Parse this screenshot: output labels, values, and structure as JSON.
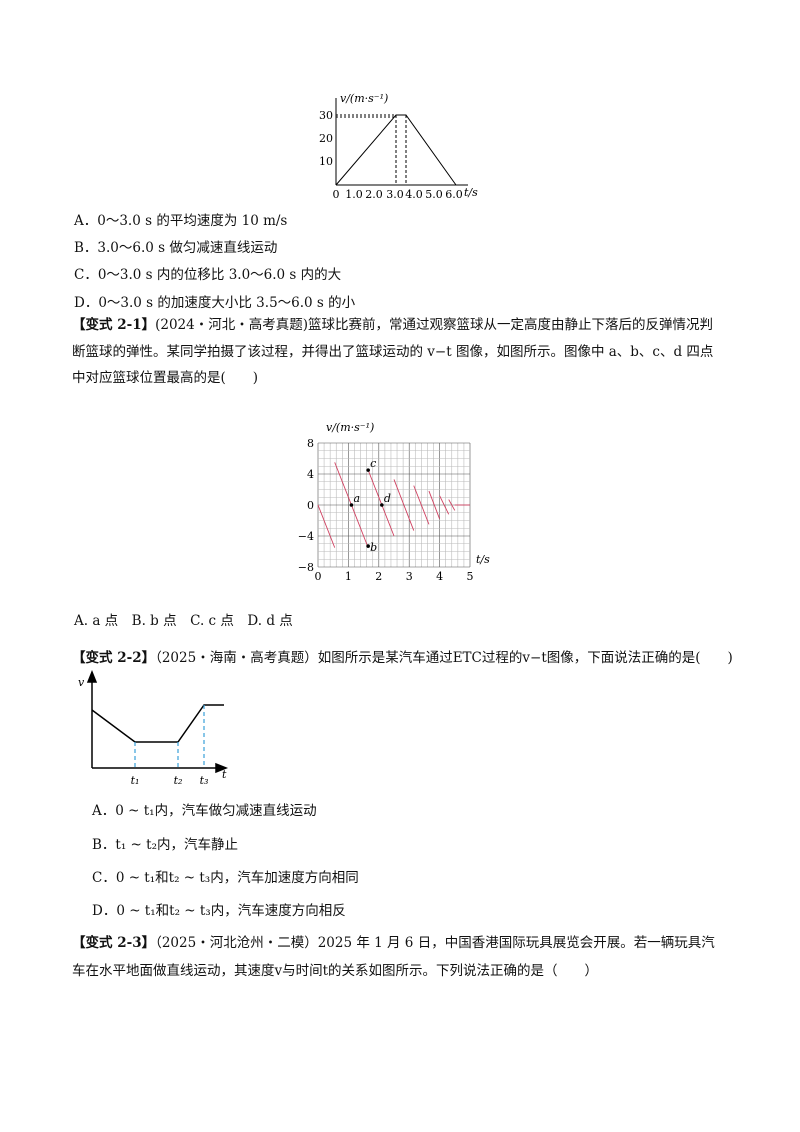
{
  "figure_1": {
    "y_label": "v/(m·s⁻¹)",
    "x_label": "t/s",
    "yticks": [
      "10",
      "20",
      "30"
    ],
    "xticks": [
      "0",
      "1.0",
      "2.0",
      "3.0",
      "4.0",
      "5.0",
      "6.0"
    ]
  },
  "question_1": {
    "options": [
      "A．0～3.0 s 的平均速度为 10 m/s",
      "B．3.0～6.0 s 做匀减速直线运动",
      "C．0～3.0 s 内的位移比 3.0～6.0 s 内的大",
      "D．0～3.0 s 的加速度大小比 3.5～6.0 s 的小"
    ]
  },
  "variant_2_1": {
    "label": "【变式 2-1】",
    "lines": [
      "(2024・河北・高考真题)篮球比赛前，常通过观察篮球从一定高度由静止下落后的反弹情况判",
      "断篮球的弹性。某同学拍摄了该过程，并得出了篮球运动的 v−t 图像，如图所示。图像中 a、b、c、d 四点",
      "中对应篮球位置最高的是(　　)"
    ],
    "figure": {
      "y_label": "v/(m·s⁻¹)",
      "x_label": "t/s",
      "yticks": [
        "8",
        "4",
        "0",
        "−4",
        "−8"
      ],
      "xticks": [
        "0",
        "1",
        "2",
        "3",
        "4",
        "5"
      ],
      "points": [
        "a",
        "b",
        "c",
        "d"
      ]
    },
    "options": "A. a 点　B. b 点　C. c 点　D. d 点"
  },
  "variant_2_2": {
    "label": "【变式 2-2】",
    "lines": [
      "（2025・海南・高考真题）如图所示是某汽车通过ETC过程的v−t图像，下面说法正确的是(　　)"
    ],
    "figure": {
      "y_label": "v",
      "x_label": "t",
      "xticks": [
        "t₁",
        "t₂",
        "t₃"
      ]
    },
    "options": [
      "A．0 ~ t₁内，汽车做匀减速直线运动",
      "B．t₁ ~ t₂内，汽车静止",
      "C．0 ~ t₁和t₂ ~ t₃内，汽车加速度方向相同",
      "D．0 ~ t₁和t₂ ~ t₃内，汽车速度方向相反"
    ]
  },
  "variant_2_3": {
    "label": "【变式 2-3】",
    "lines": [
      "（2025・河北沧州・二模）2025 年 1 月 6 日，中国香港国际玩具展览会开展。若一辆玩具汽",
      "车在水平地面做直线运动，其速度v与时间t的关系如图所示。下列说法正确的是（　　）"
    ]
  }
}
